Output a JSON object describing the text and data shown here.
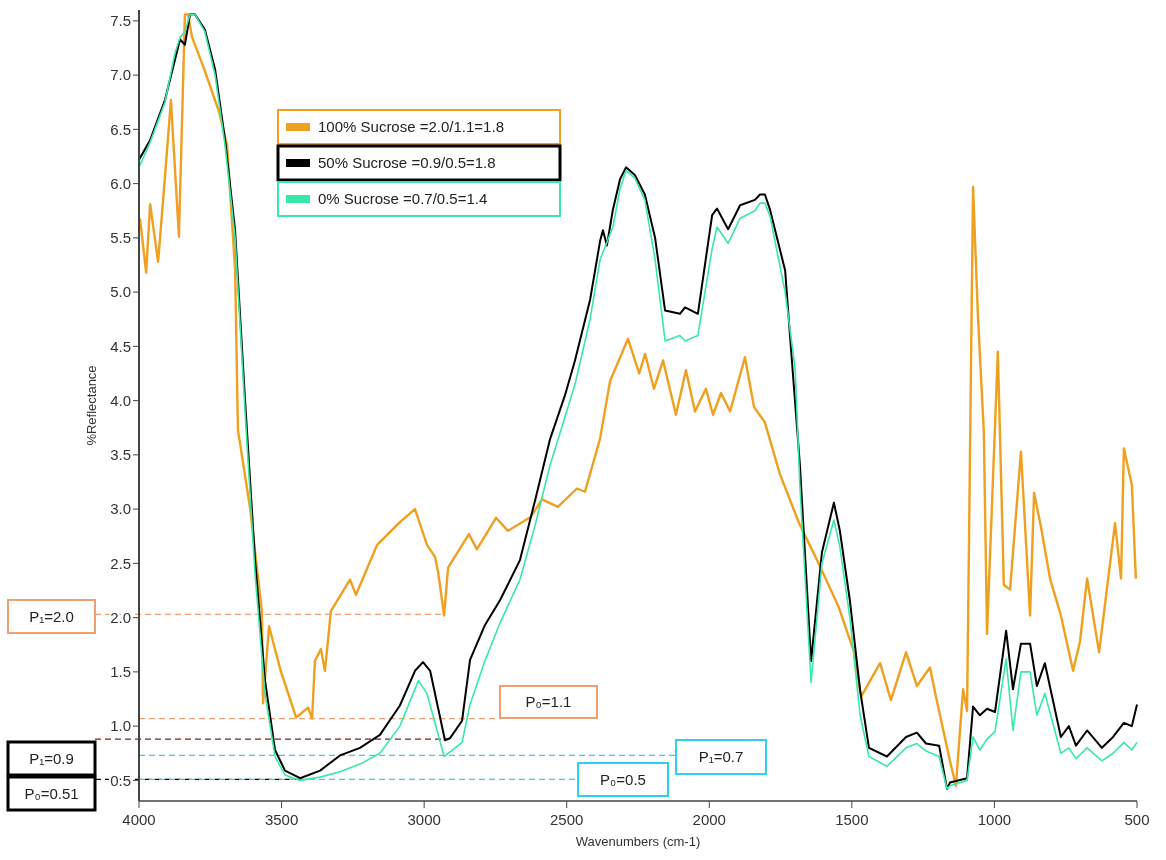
{
  "chart_data": {
    "type": "line",
    "xlabel": "Wavenumbers (cm-1)",
    "ylabel": "%Reflectance",
    "xlim": [
      4000,
      500
    ],
    "xticks": [
      4000,
      3500,
      3000,
      2500,
      2000,
      1500,
      1000,
      500
    ],
    "ylim": [
      0.31,
      7.6
    ],
    "yticks": [
      0.5,
      {
        "value": 1,
        "label": "1.0"
      },
      1.5,
      {
        "value": 2,
        "label": "2.0"
      },
      2.5,
      {
        "value": 3,
        "label": "3.0"
      },
      3.5,
      {
        "value": 4,
        "label": "4.0"
      },
      4.5,
      {
        "value": 5,
        "label": "5.0"
      },
      5.5,
      {
        "value": 6,
        "label": "6.0"
      },
      6.5,
      {
        "value": 7,
        "label": "7.0"
      },
      7.5
    ],
    "legend": "top left",
    "series": [
      {
        "name": "100% Sucrose =2.0/1.1=1.8",
        "color": "#f0a020",
        "x": [
          4000,
          3996,
          3975,
          3961,
          3933,
          3909,
          3888,
          3860,
          3839,
          3828,
          3814,
          3772,
          3719,
          3691,
          3663,
          3653,
          3611,
          3569,
          3565,
          3544,
          3502,
          3449,
          3407,
          3393,
          3383,
          3362,
          3348,
          3327,
          3260,
          3239,
          3165,
          3085,
          3032,
          2990,
          2962,
          2951,
          2930,
          2916,
          2843,
          2815,
          2748,
          2706,
          2625,
          2587,
          2531,
          2464,
          2436,
          2383,
          2348,
          2285,
          2246,
          2225,
          2194,
          2162,
          2117,
          2082,
          2050,
          2012,
          1987,
          1959,
          1927,
          1875,
          1843,
          1805,
          1752,
          1685,
          1622,
          1545,
          1492,
          1468,
          1401,
          1363,
          1310,
          1272,
          1226,
          1205,
          1156,
          1135,
          1110,
          1096,
          1075,
          1058,
          1037,
          1026,
          988,
          967,
          945,
          907,
          875,
          861,
          837,
          805,
          767,
          724,
          700,
          675,
          633,
          609,
          577,
          556,
          546,
          518,
          504
        ],
        "values": [
          5.6,
          5.67,
          5.18,
          5.81,
          5.28,
          6.06,
          6.77,
          5.51,
          7.56,
          7.56,
          7.35,
          7.06,
          6.66,
          6.35,
          5.21,
          3.73,
          3.02,
          2.06,
          1.21,
          1.92,
          1.5,
          1.08,
          1.17,
          1.07,
          1.6,
          1.71,
          1.51,
          2.06,
          2.35,
          2.21,
          2.67,
          2.88,
          3.0,
          2.67,
          2.56,
          2.42,
          2.02,
          2.46,
          2.77,
          2.63,
          2.92,
          2.8,
          2.93,
          3.09,
          3.02,
          3.19,
          3.16,
          3.65,
          4.18,
          4.57,
          4.25,
          4.43,
          4.11,
          4.37,
          3.87,
          4.28,
          3.9,
          4.11,
          3.87,
          4.07,
          3.9,
          4.4,
          3.94,
          3.8,
          3.32,
          2.87,
          2.53,
          2.09,
          1.68,
          1.27,
          1.58,
          1.24,
          1.68,
          1.37,
          1.54,
          1.27,
          0.68,
          0.45,
          1.34,
          1.14,
          5.97,
          4.79,
          3.7,
          1.85,
          4.45,
          2.3,
          2.26,
          3.53,
          2.02,
          3.15,
          2.84,
          2.36,
          2.02,
          1.51,
          1.78,
          2.36,
          1.68,
          2.19,
          2.87,
          2.36,
          3.56,
          3.22,
          2.36
        ]
      },
      {
        "name": "50% Sucrose =0.9/0.5=1.8",
        "color": "#000000",
        "x": [
          4000,
          3961,
          3909,
          3874,
          3856,
          3839,
          3821,
          3804,
          3769,
          3733,
          3698,
          3663,
          3628,
          3593,
          3558,
          3523,
          3488,
          3435,
          3365,
          3295,
          3225,
          3155,
          3085,
          3032,
          3004,
          2979,
          2927,
          2909,
          2867,
          2839,
          2787,
          2734,
          2664,
          2611,
          2559,
          2506,
          2471,
          2418,
          2383,
          2373,
          2359,
          2338,
          2313,
          2292,
          2261,
          2226,
          2190,
          2155,
          2103,
          2085,
          2040,
          1990,
          1973,
          1934,
          1892,
          1840,
          1822,
          1805,
          1787,
          1734,
          1717,
          1682,
          1643,
          1605,
          1563,
          1542,
          1507,
          1471,
          1440,
          1377,
          1310,
          1272,
          1240,
          1194,
          1166,
          1156,
          1096,
          1075,
          1051,
          1026,
          998,
          959,
          935,
          907,
          875,
          851,
          823,
          767,
          739,
          714,
          675,
          623,
          584,
          546,
          518,
          500
        ],
        "values": [
          6.22,
          6.4,
          6.77,
          7.14,
          7.33,
          7.28,
          7.56,
          7.56,
          7.42,
          7.05,
          6.4,
          5.57,
          4.0,
          2.53,
          1.42,
          0.78,
          0.59,
          0.52,
          0.59,
          0.73,
          0.8,
          0.92,
          1.19,
          1.51,
          1.59,
          1.51,
          0.87,
          0.89,
          1.05,
          1.61,
          1.93,
          2.16,
          2.53,
          3.08,
          3.64,
          4.05,
          4.37,
          4.93,
          5.47,
          5.57,
          5.43,
          5.76,
          6.04,
          6.15,
          6.08,
          5.9,
          5.5,
          4.83,
          4.8,
          4.86,
          4.8,
          5.71,
          5.77,
          5.58,
          5.8,
          5.85,
          5.9,
          5.9,
          5.76,
          5.2,
          4.6,
          3.4,
          1.6,
          2.6,
          3.06,
          2.8,
          2.16,
          1.33,
          0.8,
          0.72,
          0.9,
          0.94,
          0.84,
          0.82,
          0.42,
          0.48,
          0.52,
          1.18,
          1.1,
          1.16,
          1.13,
          1.88,
          1.34,
          1.76,
          1.76,
          1.37,
          1.58,
          0.9,
          1.0,
          0.82,
          0.96,
          0.8,
          0.9,
          1.03,
          1.0,
          1.2
        ]
      },
      {
        "name": "0% Sucrose =0.7/0.5=1.4",
        "color": "#38e8a8",
        "x": [
          4000,
          3961,
          3909,
          3874,
          3856,
          3839,
          3821,
          3804,
          3769,
          3733,
          3698,
          3663,
          3628,
          3593,
          3558,
          3523,
          3488,
          3435,
          3365,
          3295,
          3225,
          3155,
          3085,
          3020,
          2990,
          2930,
          2867,
          2839,
          2787,
          2734,
          2664,
          2611,
          2559,
          2506,
          2471,
          2418,
          2383,
          2338,
          2313,
          2292,
          2261,
          2226,
          2190,
          2155,
          2103,
          2085,
          2040,
          1990,
          1973,
          1934,
          1892,
          1840,
          1822,
          1805,
          1787,
          1734,
          1699,
          1682,
          1643,
          1605,
          1563,
          1542,
          1507,
          1471,
          1440,
          1377,
          1310,
          1272,
          1240,
          1194,
          1166,
          1156,
          1096,
          1075,
          1051,
          1026,
          998,
          959,
          935,
          907,
          875,
          851,
          823,
          767,
          739,
          714,
          675,
          623,
          584,
          546,
          518,
          500
        ],
        "values": [
          6.15,
          6.38,
          6.75,
          7.2,
          7.35,
          7.4,
          7.56,
          7.56,
          7.4,
          7.0,
          6.35,
          5.5,
          3.9,
          2.4,
          1.3,
          0.72,
          0.55,
          0.5,
          0.53,
          0.58,
          0.65,
          0.75,
          1.0,
          1.42,
          1.3,
          0.72,
          0.85,
          1.2,
          1.6,
          1.95,
          2.35,
          2.85,
          3.4,
          3.85,
          4.15,
          4.75,
          5.3,
          5.6,
          5.95,
          6.12,
          6.05,
          5.85,
          5.3,
          4.55,
          4.6,
          4.55,
          4.6,
          5.4,
          5.6,
          5.45,
          5.68,
          5.75,
          5.82,
          5.82,
          5.7,
          5.0,
          4.3,
          3.2,
          1.4,
          2.5,
          2.9,
          2.65,
          2.0,
          1.1,
          0.72,
          0.63,
          0.8,
          0.84,
          0.77,
          0.72,
          0.42,
          0.45,
          0.5,
          0.9,
          0.78,
          0.88,
          0.95,
          1.62,
          0.96,
          1.5,
          1.5,
          1.1,
          1.3,
          0.75,
          0.8,
          0.7,
          0.8,
          0.68,
          0.75,
          0.85,
          0.78,
          0.85
        ]
      }
    ],
    "ref_lines": [
      {
        "axis": "y",
        "value": 2.03,
        "label": "P₁=2.0",
        "color": "#f0a070",
        "line_style": "dashed"
      },
      {
        "axis": "y",
        "value": 1.07,
        "label": "P₀=1.1",
        "color": "#f0a070",
        "line_style": "dashed"
      },
      {
        "axis": "y",
        "value": 0.88,
        "label": "P₁=0.9",
        "color": "#802020",
        "line_style": "dashed"
      },
      {
        "axis": "y",
        "value": 0.73,
        "label": "P₁=0.7",
        "color": "#30d0f0",
        "line_style": "dashed"
      },
      {
        "axis": "y",
        "value": 0.51,
        "label": "P₀=0.51",
        "color": "#000000",
        "line_style": "dashed"
      },
      {
        "axis": "y",
        "value": 0.51,
        "label": "P₀=0.5",
        "color": "#30d0f0",
        "line_style": "dashed"
      }
    ]
  }
}
